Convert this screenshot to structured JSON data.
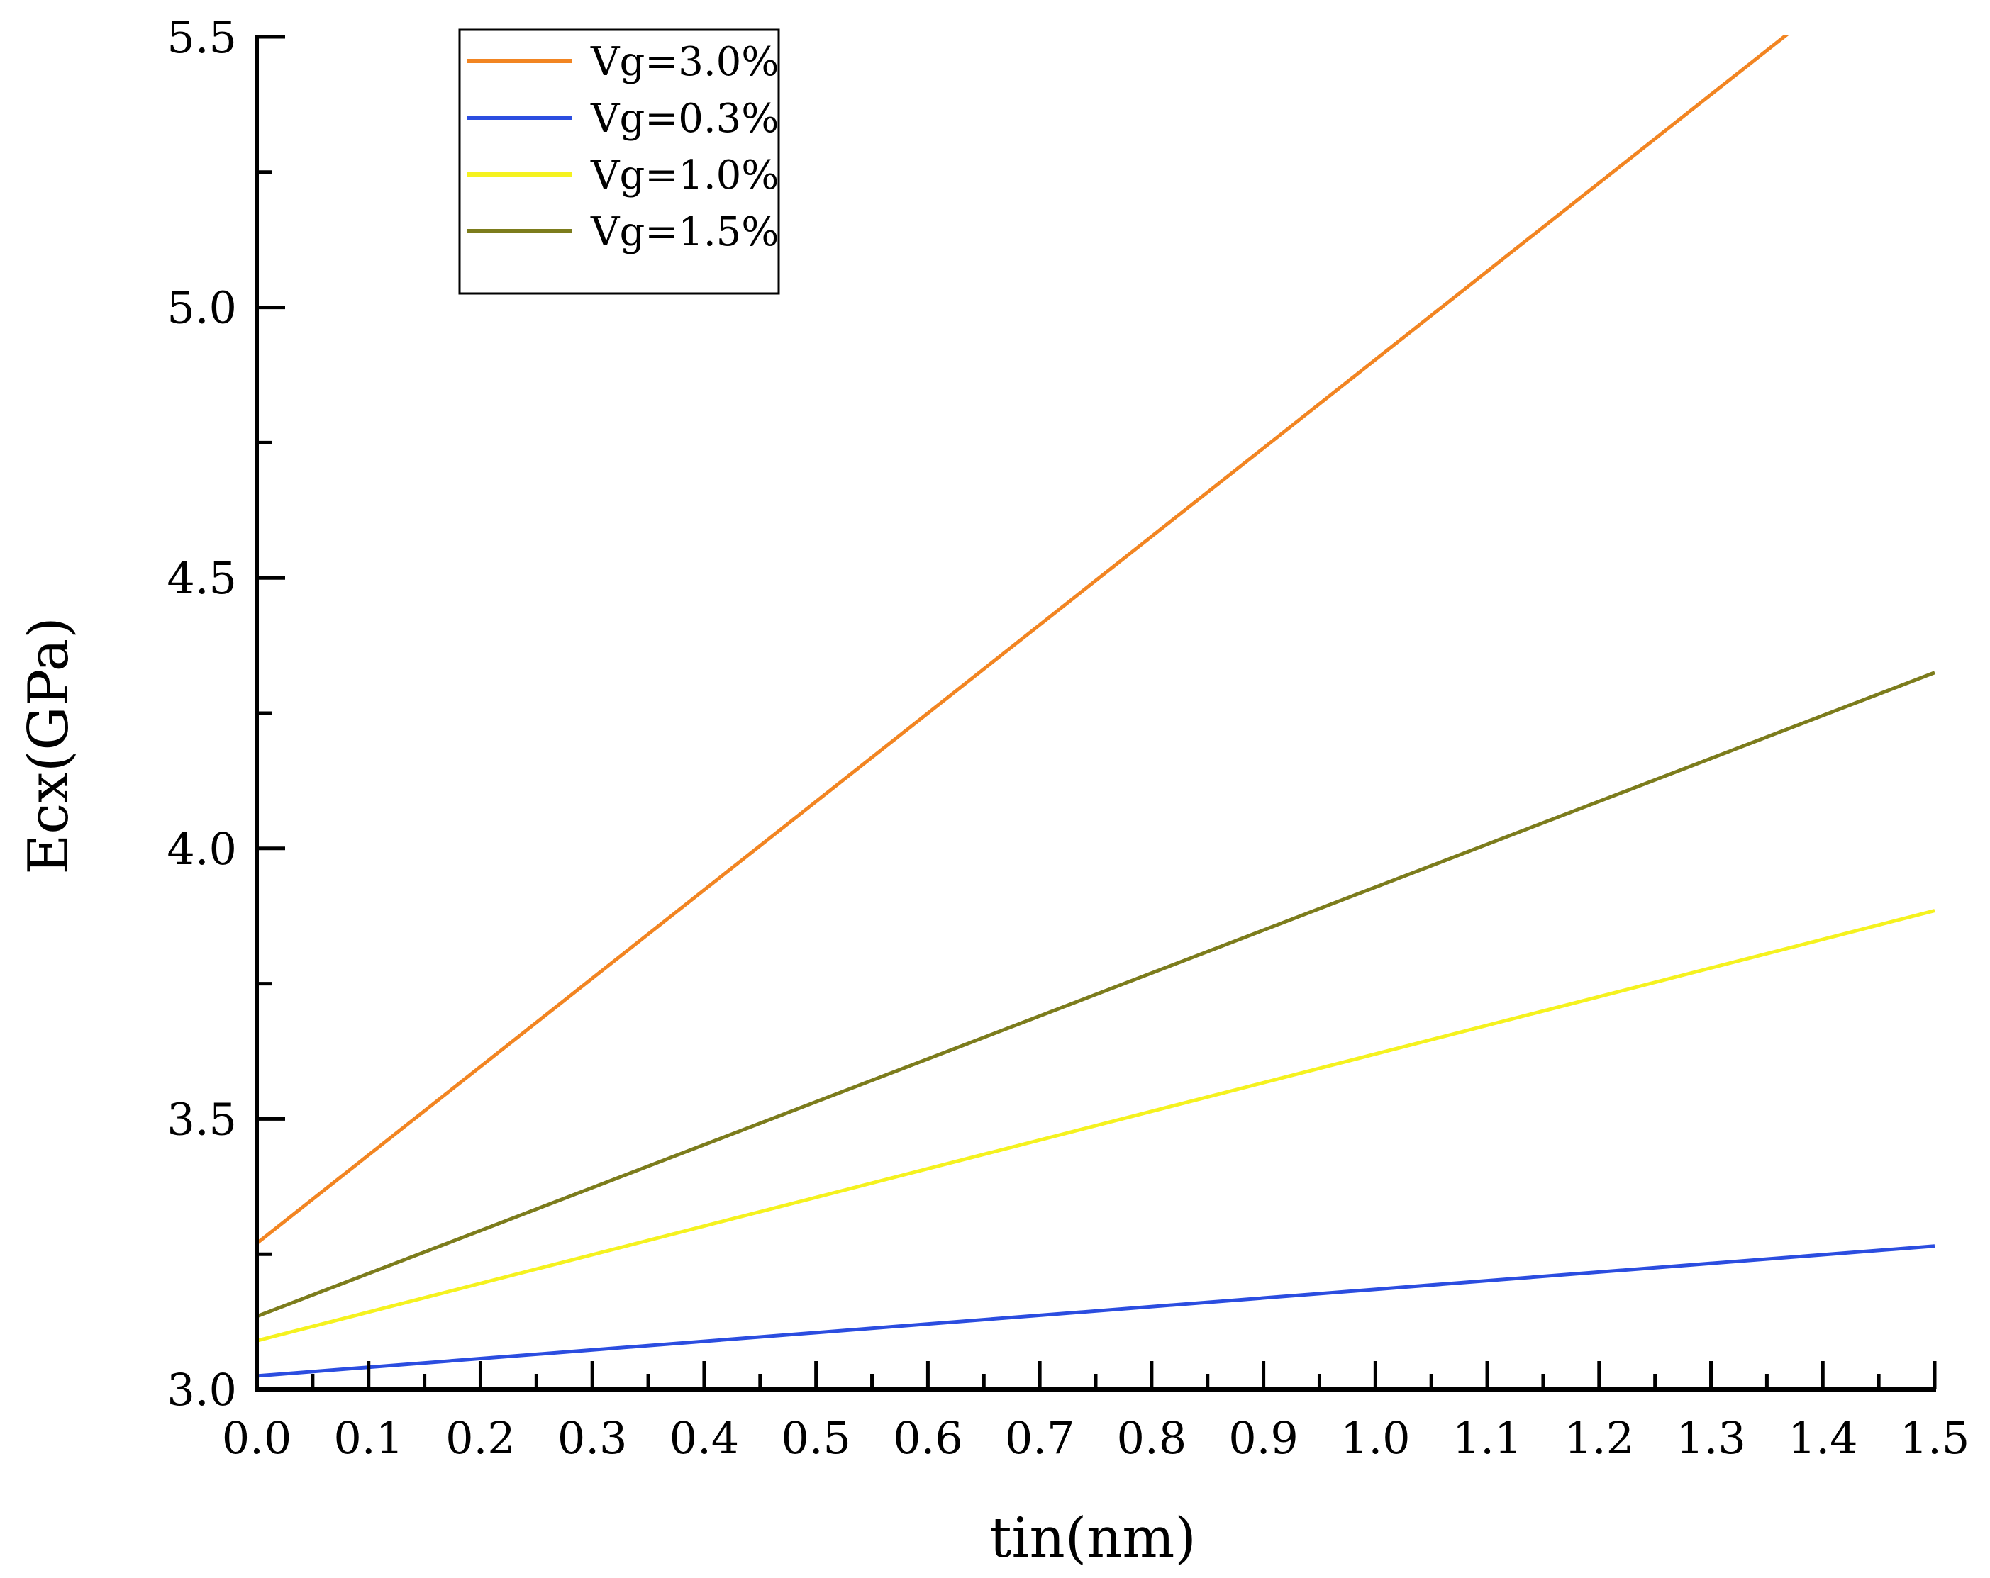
{
  "chart_data": {
    "type": "line",
    "title": "",
    "xlabel": "tin(nm)",
    "ylabel": "Ecx(GPa)",
    "xlim": [
      0.0,
      1.5
    ],
    "ylim": [
      3.0,
      5.5
    ],
    "x_ticks": [
      0.0,
      0.1,
      0.2,
      0.3,
      0.4,
      0.5,
      0.6,
      0.7,
      0.8,
      0.9,
      1.0,
      1.1,
      1.2,
      1.3,
      1.4,
      1.5
    ],
    "x_tick_labels": [
      "0.0",
      "0.1",
      "0.2",
      "0.3",
      "0.4",
      "0.5",
      "0.6",
      "0.7",
      "0.8",
      "0.9",
      "1.0",
      "1.1",
      "1.2",
      "1.3",
      "1.4",
      "1.5"
    ],
    "y_ticks": [
      3.0,
      3.5,
      4.0,
      4.5,
      5.0,
      5.5
    ],
    "y_tick_labels": [
      "3.0",
      "3.5",
      "4.0",
      "4.5",
      "5.0",
      "5.5"
    ],
    "grid": false,
    "legend_position": "top-left",
    "series": [
      {
        "name": "Vg=3.0%",
        "color": "#F28522",
        "x": [
          0.0,
          1.5
        ],
        "y": [
          3.27,
          5.72
        ]
      },
      {
        "name": "Vg=0.3%",
        "color": "#2B4DE0",
        "x": [
          0.0,
          1.5
        ],
        "y": [
          3.025,
          3.265
        ]
      },
      {
        "name": "Vg=1.0%",
        "color": "#F5F21F",
        "x": [
          0.0,
          1.5
        ],
        "y": [
          3.09,
          3.885
        ]
      },
      {
        "name": "Vg=1.5%",
        "color": "#7C7C1C",
        "x": [
          0.0,
          1.5
        ],
        "y": [
          3.135,
          4.325
        ]
      }
    ]
  }
}
